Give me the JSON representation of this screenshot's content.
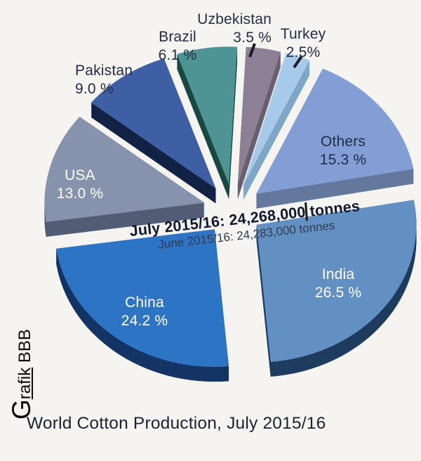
{
  "page": {
    "background_color": "#f5f4f1",
    "title": "World Cotton Production, July 2015/16",
    "watermark": {
      "initial": "G",
      "underlined": "rafik",
      "suffix": " BBB"
    }
  },
  "center_annotation": {
    "line1": "July 2015/16: 24,268,000 tonnes",
    "line2": "June 2015/16: 24,283,000 tonnes"
  },
  "chart_data": {
    "type": "pie",
    "style": "3d-exploded",
    "title": "World Cotton Production, July 2015/16",
    "unit": "percent share of world cotton production",
    "total_july": "24,268,000 tonnes",
    "total_june": "24,283,000 tonnes",
    "legend_position": "none",
    "slices": [
      {
        "id": "uzbekistan",
        "label": "Uzbekistan",
        "value": 3.5,
        "pct_label": "3.5 %",
        "color": "#8d8095",
        "side_color": "#6a5f72",
        "label_color": "#242c45"
      },
      {
        "id": "turkey",
        "label": "Turkey",
        "value": 2.5,
        "pct_label": "2.5%",
        "color": "#a7c9ea",
        "side_color": "#7fa6c6",
        "label_color": "#242c45"
      },
      {
        "id": "others",
        "label": "Others",
        "value": 15.3,
        "pct_label": "15.3 %",
        "color": "#829ed5",
        "side_color": "#64789e",
        "label_color": "#242c45"
      },
      {
        "id": "india",
        "label": "India",
        "value": 26.5,
        "pct_label": "26.5 %",
        "color": "#6290c2",
        "side_color": "#1f3c5f",
        "label_color": "#ffffff"
      },
      {
        "id": "china",
        "label": "China",
        "value": 24.2,
        "pct_label": "24.2 %",
        "color": "#2e74c5",
        "side_color": "#143465",
        "label_color": "#ffffff"
      },
      {
        "id": "usa",
        "label": "USA",
        "value": 13.0,
        "pct_label": "13.0 %",
        "color": "#8792ad",
        "side_color": "#525c74",
        "label_color": "#ffffff"
      },
      {
        "id": "pakistan",
        "label": "Pakistan",
        "value": 9.0,
        "pct_label": "9.0 %",
        "color": "#3f5fa4",
        "side_color": "#122346",
        "label_color": "#242c45"
      },
      {
        "id": "brazil",
        "label": "Brazil",
        "value": 6.1,
        "pct_label": "6.1 %",
        "color": "#4f9494",
        "side_color": "#1c4842",
        "label_color": "#242c45"
      }
    ]
  }
}
